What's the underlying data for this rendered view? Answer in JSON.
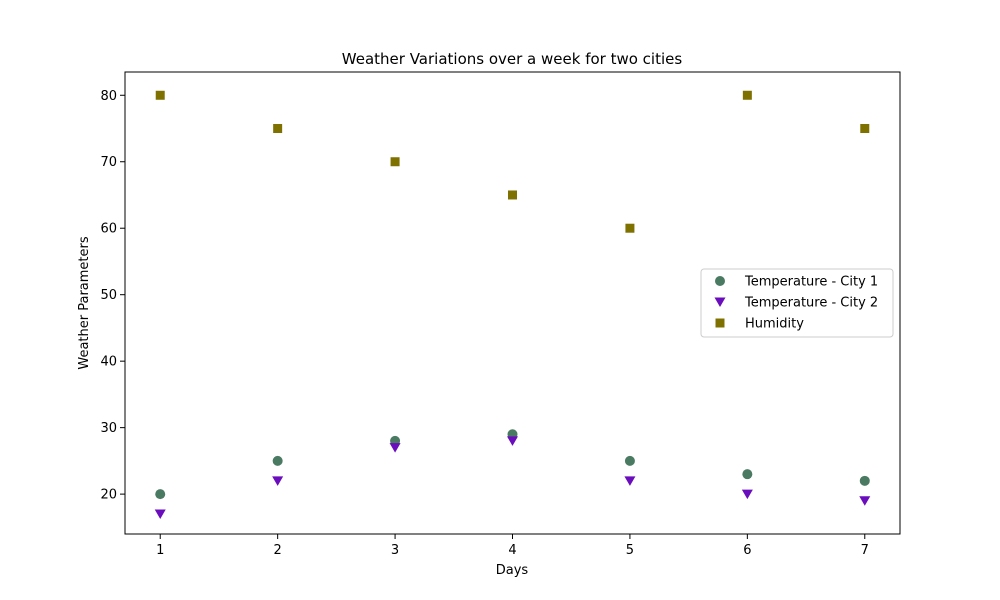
{
  "chart_data": {
    "type": "scatter",
    "title": "Weather Variations over a week for two cities",
    "xlabel": "Days",
    "ylabel": "Weather Parameters",
    "x": [
      1,
      2,
      3,
      4,
      5,
      6,
      7
    ],
    "xlim": [
      0.7,
      7.3
    ],
    "ylim": [
      14,
      83.5
    ],
    "xticks": [
      1,
      2,
      3,
      4,
      5,
      6,
      7
    ],
    "yticks": [
      20,
      30,
      40,
      50,
      60,
      70,
      80
    ],
    "grid": false,
    "legend_position": "center-right",
    "series": [
      {
        "name": "Temperature - City 1",
        "marker": "circle",
        "color": "#4a7a62",
        "values": [
          20,
          25,
          28,
          29,
          25,
          23,
          22
        ]
      },
      {
        "name": "Temperature - City 2",
        "marker": "triangle-down",
        "color": "#6a0dbd",
        "values": [
          17,
          22,
          27,
          28,
          22,
          20,
          19
        ]
      },
      {
        "name": "Humidity",
        "marker": "square",
        "color": "#7f7100",
        "values": [
          80,
          75,
          70,
          65,
          60,
          80,
          75
        ]
      }
    ]
  }
}
